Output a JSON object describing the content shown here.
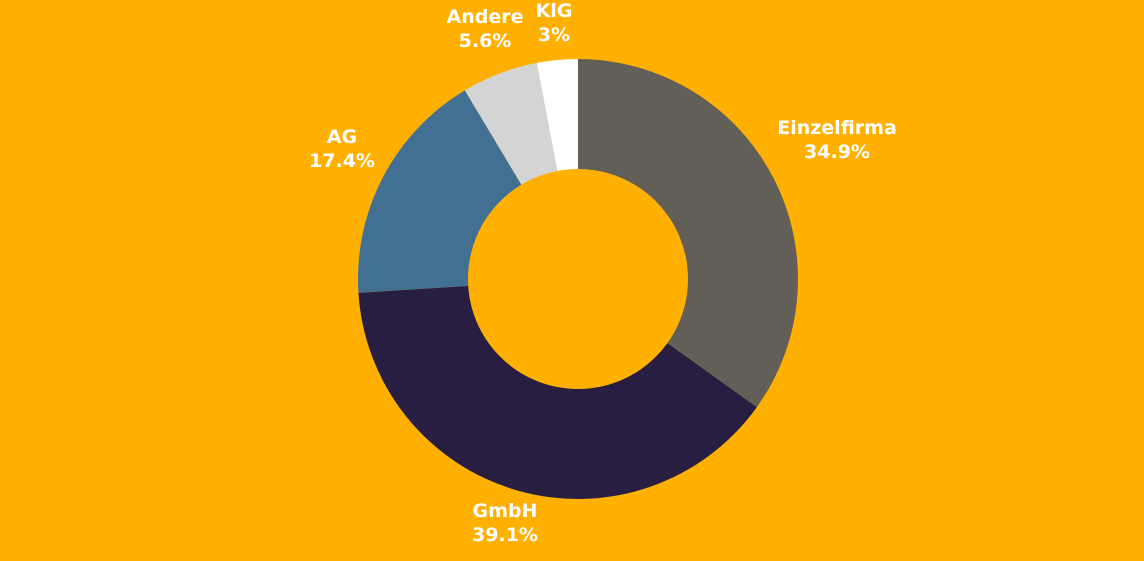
{
  "chart_data": {
    "type": "pie",
    "variant": "donut",
    "background": "#FFB000",
    "slices": [
      {
        "label": "Einzelfirma",
        "value": 34.9,
        "value_label": "34.9%",
        "color": "#625F58"
      },
      {
        "label": "GmbH",
        "value": 39.1,
        "value_label": "39.1%",
        "color": "#271E41"
      },
      {
        "label": "AG",
        "value": 17.4,
        "value_label": "17.4%",
        "color": "#427093"
      },
      {
        "label": "Andere",
        "value": 5.6,
        "value_label": "5.6%",
        "color": "#D4D4D4"
      },
      {
        "label": "KlG",
        "value": 3,
        "value_label": "3%",
        "color": "#FFFFFF"
      }
    ]
  }
}
